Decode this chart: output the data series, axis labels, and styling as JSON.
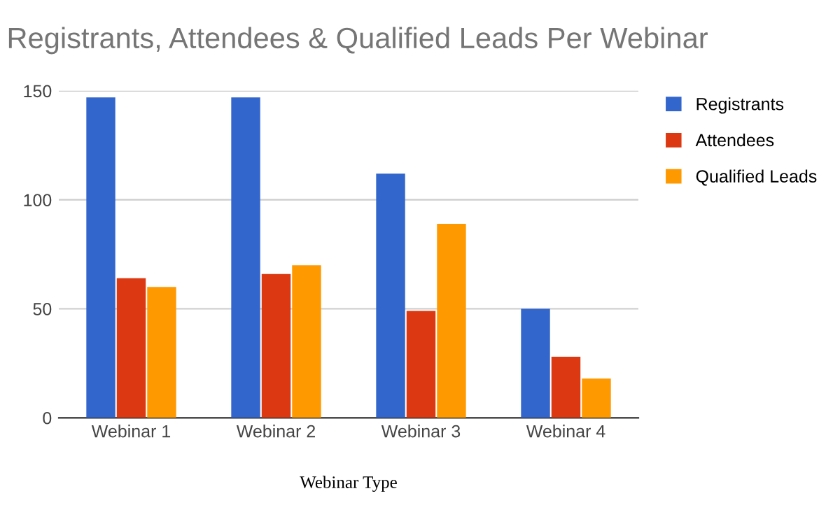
{
  "chart_data": {
    "type": "bar",
    "title": "Registrants, Attendees & Qualified Leads Per Webinar",
    "xlabel": "Webinar Type",
    "categories": [
      "Webinar 1",
      "Webinar 2",
      "Webinar 3",
      "Webinar 4"
    ],
    "series": [
      {
        "name": "Registrants",
        "color": "#3366cc",
        "values": [
          147,
          147,
          112,
          50
        ]
      },
      {
        "name": "Attendees",
        "color": "#dc3912",
        "values": [
          64,
          66,
          49,
          28
        ]
      },
      {
        "name": "Qualified Leads",
        "color": "#ff9900",
        "values": [
          60,
          70,
          89,
          18
        ]
      }
    ],
    "ylim": [
      0,
      150
    ],
    "yticks": [
      0,
      50,
      100,
      150
    ],
    "grid": "y",
    "legend": "top right"
  }
}
